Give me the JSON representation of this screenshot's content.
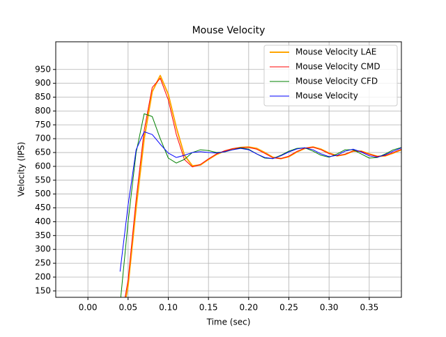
{
  "chart_data": {
    "type": "line",
    "title": "Mouse Velocity",
    "x_label": "Time (sec)",
    "y_label": "Velocity (IPS)",
    "x": [
      0.04,
      0.05,
      0.06,
      0.07,
      0.08,
      0.09,
      0.1,
      0.11,
      0.12,
      0.13,
      0.14,
      0.15,
      0.16,
      0.17,
      0.18,
      0.19,
      0.2,
      0.21,
      0.22,
      0.23,
      0.24,
      0.25,
      0.26,
      0.27,
      0.28,
      0.29,
      0.3,
      0.31,
      0.32,
      0.33,
      0.34,
      0.35,
      0.36,
      0.37,
      0.38,
      0.39
    ],
    "series": [
      {
        "name": "Mouse Velocity LAE",
        "color": "#ffa500",
        "line_width": 2,
        "values": [
          0,
          170,
          450,
          700,
          870,
          928,
          860,
          740,
          640,
          602,
          605,
          625,
          643,
          655,
          663,
          668,
          670,
          665,
          650,
          633,
          628,
          635,
          652,
          665,
          670,
          662,
          648,
          638,
          643,
          655,
          655,
          645,
          636,
          638,
          648,
          660
        ]
      },
      {
        "name": "Mouse Velocity CMD",
        "color": "#ff0000",
        "line_width": 1,
        "values": [
          20,
          190,
          480,
          730,
          885,
          918,
          840,
          715,
          625,
          598,
          607,
          627,
          645,
          656,
          664,
          668,
          668,
          662,
          647,
          631,
          628,
          637,
          654,
          666,
          669,
          660,
          646,
          638,
          644,
          656,
          654,
          643,
          636,
          639,
          650,
          662
        ]
      },
      {
        "name": "Mouse Velocity CFD",
        "color": "#008000",
        "line_width": 1,
        "values": [
          100,
          400,
          650,
          790,
          780,
          700,
          630,
          612,
          625,
          650,
          660,
          657,
          650,
          652,
          660,
          667,
          662,
          645,
          630,
          628,
          640,
          655,
          665,
          667,
          655,
          640,
          633,
          645,
          660,
          660,
          645,
          630,
          632,
          645,
          660,
          668
        ]
      },
      {
        "name": "Mouse Velocity",
        "color": "#0000ff",
        "line_width": 1,
        "values": [
          220,
          460,
          660,
          725,
          715,
          680,
          648,
          632,
          640,
          650,
          653,
          650,
          648,
          653,
          660,
          665,
          660,
          645,
          632,
          628,
          638,
          652,
          663,
          667,
          660,
          645,
          635,
          640,
          655,
          662,
          652,
          638,
          633,
          642,
          655,
          667
        ]
      }
    ],
    "xlim": [
      -0.04,
      0.39
    ],
    "ylim": [
      127,
      1050
    ],
    "xticks": [
      {
        "value": 0,
        "label": "0.00"
      },
      {
        "value": 0.05,
        "label": "0.05"
      },
      {
        "value": 0.1,
        "label": "0.10"
      },
      {
        "value": 0.15,
        "label": "0.15"
      },
      {
        "value": 0.2,
        "label": "0.20"
      },
      {
        "value": 0.25,
        "label": "0.25"
      },
      {
        "value": 0.3,
        "label": "0.30"
      },
      {
        "value": 0.35,
        "label": "0.35"
      }
    ],
    "yticks": [
      150,
      200,
      250,
      300,
      350,
      400,
      450,
      500,
      550,
      600,
      650,
      700,
      750,
      800,
      850,
      900,
      950
    ],
    "grid": true,
    "legend": "upper-right"
  }
}
